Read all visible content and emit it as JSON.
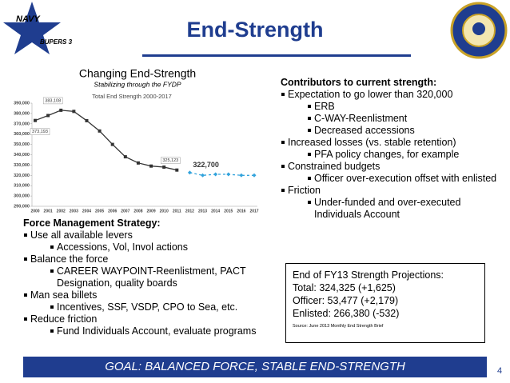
{
  "header": {
    "title": "End-Strength",
    "logo": [
      "NAVY",
      "BUPERS 3"
    ]
  },
  "chart_data": {
    "type": "line",
    "title": "Changing End-Strength",
    "subtitle": "Stabilizing through the FYDP",
    "inner_title": "Total End Strength 2000-2017",
    "categories": [
      "2000",
      "2001",
      "2002",
      "2003",
      "2004",
      "2005",
      "2006",
      "2007",
      "2008",
      "2009",
      "2010",
      "2011",
      "2012",
      "2013",
      "2014",
      "2015",
      "2016",
      "2017"
    ],
    "series": [
      {
        "color": "#333333",
        "style": "solid",
        "values": [
          373193,
          378000,
          383108,
          382000,
          373000,
          363000,
          350000,
          338000,
          332000,
          329000,
          328000,
          325123,
          null,
          null,
          null,
          null,
          null,
          null
        ],
        "value_labels": [
          "373,193",
          null,
          "383,108",
          null,
          null,
          null,
          null,
          null,
          null,
          null,
          null,
          "325,123",
          null,
          null,
          null,
          null,
          null,
          null
        ]
      },
      {
        "color": "#33a3dc",
        "style": "dashed",
        "values": [
          null,
          null,
          null,
          null,
          null,
          null,
          null,
          null,
          null,
          null,
          null,
          null,
          322700,
          320000,
          321000,
          321000,
          320000,
          320000
        ],
        "value_labels": [
          null,
          null,
          null,
          null,
          null,
          null,
          null,
          null,
          null,
          null,
          null,
          null,
          "322,700",
          null,
          null,
          null,
          null,
          null
        ]
      }
    ],
    "ylim": [
      290000,
      390000
    ],
    "yticks": [
      {
        "value": 290000,
        "label": "290,000"
      },
      {
        "value": 300000,
        "label": "300,000"
      },
      {
        "value": 310000,
        "label": "310,000"
      },
      {
        "value": 320000,
        "label": "320,000"
      },
      {
        "value": 330000,
        "label": "330,000"
      },
      {
        "value": 340000,
        "label": "340,000"
      },
      {
        "value": 350000,
        "label": "350,000"
      },
      {
        "value": 360000,
        "label": "360,000"
      },
      {
        "value": 370000,
        "label": "370,000"
      },
      {
        "value": 380000,
        "label": "380,000"
      },
      {
        "value": 390000,
        "label": "390,000"
      }
    ],
    "grid": false
  },
  "contributors": {
    "heading": "Contributors to current strength:",
    "items": [
      {
        "text": "Expectation to go lower than 320,000",
        "sub": [
          "ERB",
          "C-WAY-Reenlistment",
          "Decreased accessions"
        ]
      },
      {
        "text": "Increased losses (vs. stable retention)",
        "sub": [
          "PFA policy changes, for example"
        ]
      },
      {
        "text": "Constrained budgets",
        "sub": [
          "Officer over-execution offset with enlisted"
        ]
      },
      {
        "text": "Friction",
        "sub": [
          "Under-funded and over-executed Individuals Account"
        ]
      }
    ]
  },
  "strategy": {
    "heading": "Force Management Strategy:",
    "items": [
      {
        "text": "Use all available levers",
        "sub": [
          "Accessions, Vol, Invol actions"
        ]
      },
      {
        "text": "Balance the force",
        "sub": [
          "CAREER WAYPOINT-Reenlistment, PACT Designation, quality boards"
        ]
      },
      {
        "text": "Man sea billets",
        "sub": [
          "Incentives, SSF, VSDP, CPO to Sea, etc."
        ]
      },
      {
        "text": "Reduce friction",
        "sub": [
          "Fund Individuals Account, evaluate programs"
        ]
      }
    ]
  },
  "projections": {
    "lines": [
      "End of FY13 Strength Projections:",
      "Total: 324,325 (+1,625)",
      "Officer: 53,477 (+2,179)",
      "Enlisted: 266,380 (-532)"
    ],
    "source": "Source: June 2013 Monthly End Strength Brief"
  },
  "goal": "GOAL:  BALANCED FORCE, STABLE END-STRENGTH",
  "page_number": "4"
}
